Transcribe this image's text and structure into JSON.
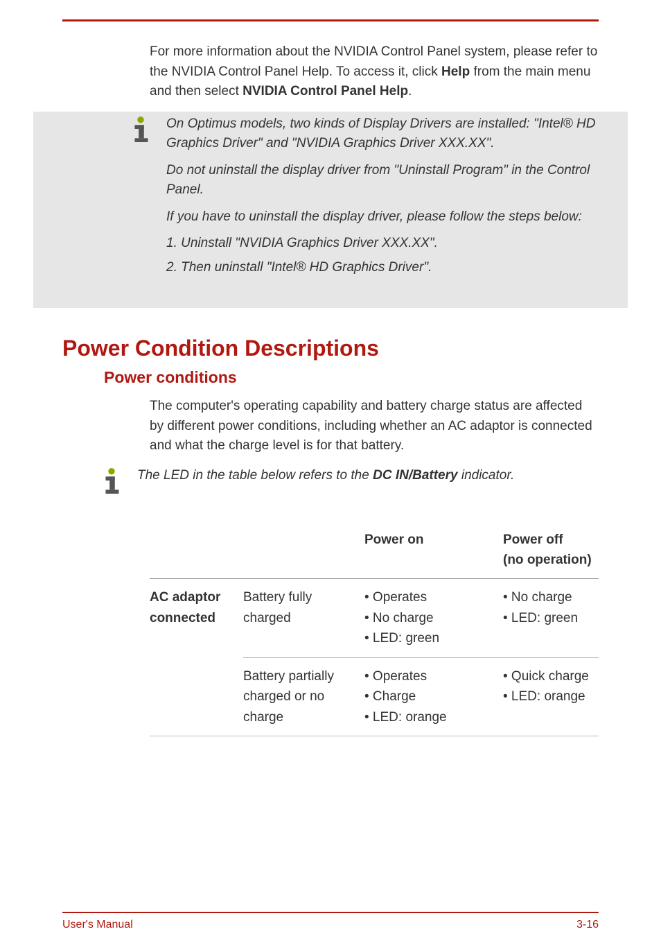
{
  "colors": {
    "accent": "#b01810",
    "text": "#333333",
    "info_dot": "#88aa00",
    "gray_bg": "#e6e6e6",
    "border": "#bbbbbb"
  },
  "typography": {
    "body_fontsize": 19,
    "h1_fontsize": 32,
    "h2_fontsize": 23,
    "footer_fontsize": 16,
    "font_family": "Arial"
  },
  "intro": {
    "p1_a": "For more information about the NVIDIA Control Panel system, please refer to the NVIDIA Control Panel Help. To access it, click ",
    "p1_b_bold": "Help",
    "p1_c": " from the main menu and then select ",
    "p1_d_bold": "NVIDIA Control Panel Help",
    "p1_e": "."
  },
  "note1": {
    "p1": "On Optimus models, two kinds of Display Drivers are installed: \"Intel® HD Graphics Driver\" and \"NVIDIA Graphics Driver XXX.XX\".",
    "p2": "Do not uninstall the display driver from \"Uninstall Program\" in the Control Panel.",
    "p3": "If you have to uninstall the display driver, please follow the steps below:",
    "li1": "1. Uninstall \"NVIDIA Graphics Driver XXX.XX\".",
    "li2": "2. Then uninstall \"Intel® HD Graphics Driver\"."
  },
  "section": {
    "h1": "Power Condition Descriptions",
    "h2": "Power conditions",
    "body": "The computer's operating capability and battery charge status are affected by different power conditions, including whether an AC adaptor is connected and what the charge level is for that battery."
  },
  "note2": {
    "p1_a": "The LED in the table below refers to the ",
    "p1_b_bold": "DC IN/Battery",
    "p1_c": " indicator."
  },
  "table": {
    "headers": {
      "c1": "",
      "c2": "",
      "c3": "Power on",
      "c4_line1": "Power off",
      "c4_line2": "(no operation)"
    },
    "rows": [
      {
        "rowhead": "AC adaptor connected",
        "cond": "Battery fully charged",
        "on_items": [
          "• Operates",
          "• No charge",
          "• LED: green"
        ],
        "off_items": [
          "• No charge",
          "• LED: green"
        ]
      },
      {
        "rowhead": "",
        "cond": "Battery partially charged or no charge",
        "on_items": [
          "• Operates",
          "• Charge",
          "• LED: orange"
        ],
        "off_items": [
          "• Quick charge",
          "• LED: orange"
        ]
      }
    ]
  },
  "footer": {
    "left": "User's Manual",
    "right": "3-16"
  }
}
